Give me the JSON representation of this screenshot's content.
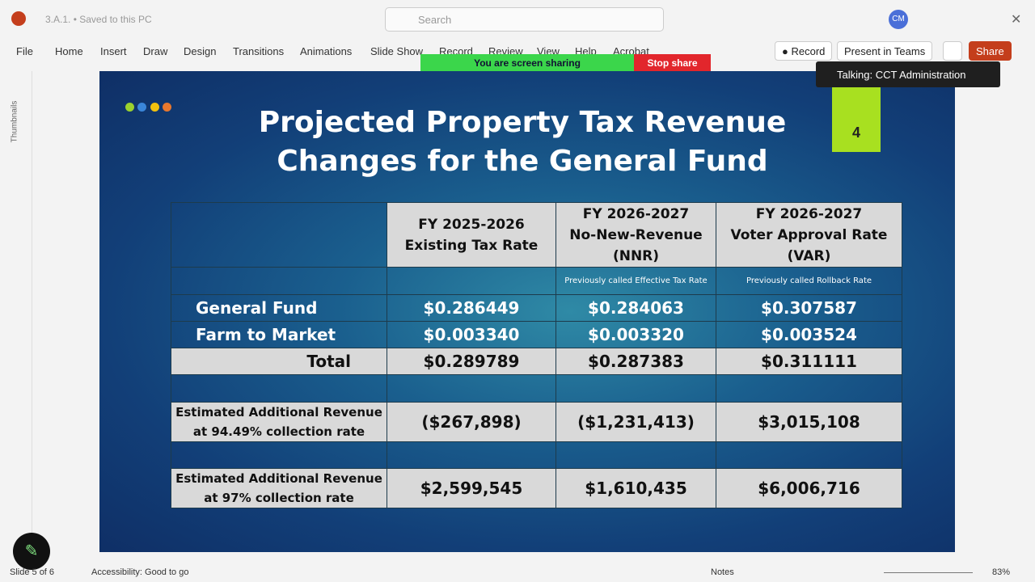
{
  "titlebar": {
    "filename": "3.A.1.",
    "saved": "Saved to this PC",
    "search": "Search",
    "avatar": "CM"
  },
  "ribbon": {
    "tabs": [
      "File",
      "Home",
      "Insert",
      "Draw",
      "Design",
      "Transitions",
      "Animations",
      "Slide Show",
      "Record",
      "Review",
      "View",
      "Help",
      "Acrobat"
    ],
    "record": "Record",
    "present": "Present in Teams",
    "share": "Share"
  },
  "sharing": {
    "status": "You are screen sharing",
    "stop": "Stop share",
    "talking": "Talking: CCT Administration"
  },
  "sidebar": {
    "label": "Thumbnails"
  },
  "slide": {
    "title": [
      "Projected Property Tax Revenue",
      "Changes for the General Fund"
    ],
    "badge": "4",
    "table": {
      "columns": [
        {
          "lines": [
            "FY 2025-2026",
            "Existing Tax Rate"
          ]
        },
        {
          "lines": [
            "FY 2026-2027",
            "No-New-Revenue",
            "(NNR)"
          ],
          "note": "Previously called Effective Tax Rate"
        },
        {
          "lines": [
            "FY 2026-2027",
            "Voter Approval Rate",
            "(VAR)"
          ],
          "note": "Previously called Rollback Rate"
        }
      ],
      "rows": [
        {
          "label": [
            "General Fund"
          ],
          "cells": [
            "$0.286449",
            "$0.284063",
            "$0.307587"
          ]
        },
        {
          "label": [
            "Farm to Market"
          ],
          "cells": [
            "$0.003340",
            "$0.003320",
            "$0.003524"
          ]
        },
        {
          "label": [
            "Total"
          ],
          "cells": [
            "$0.289789",
            "$0.287383",
            "$0.311111"
          ]
        },
        {
          "label": [
            "Estimated Additional Revenue",
            "at 94.49% collection rate"
          ],
          "cells": [
            "($267,898)",
            "($1,231,413)",
            "$3,015,108"
          ]
        },
        {
          "label": [
            "Estimated Additional Revenue",
            "at 97% collection rate"
          ],
          "cells": [
            "$2,599,545",
            "$1,610,435",
            "$6,006,716"
          ]
        }
      ]
    }
  },
  "statusbar": {
    "slide": "Slide 5 of 6",
    "accessibility": "Accessibility: Good to go",
    "notes": "Notes",
    "zoom": "83%"
  }
}
